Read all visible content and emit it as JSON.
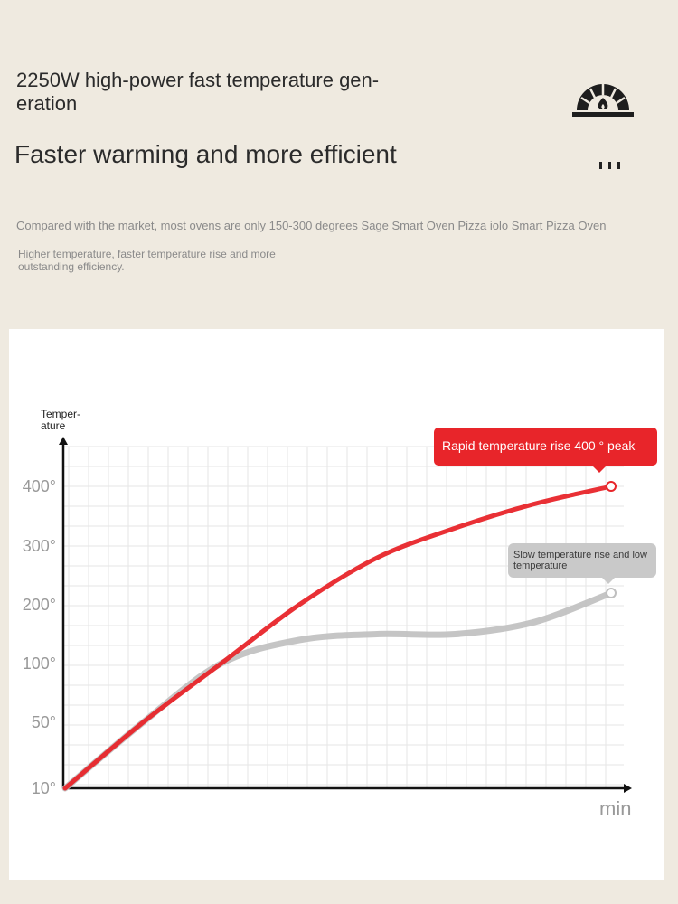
{
  "header": {
    "title": "2250W high-power fast temperature gen-eration",
    "subtitle": "Faster warming and more efficient",
    "logo_icon": "pizza-oven-flame-icon",
    "more_icon": "three-dots-icon"
  },
  "description": {
    "line1": "Compared with the market, most ovens are only 150-300 degrees Sage Smart Oven Pizza iolo Smart Pizza Oven",
    "line2": "Higher temperature, faster temperature rise and more outstanding efficiency."
  },
  "colors": {
    "background": "#efeae0",
    "red_series": "#e8252a",
    "grey_series": "#bfbfbf",
    "text_dark": "#2b2b2b",
    "text_muted": "#8a8a8a"
  },
  "chart_data": {
    "type": "line",
    "title": "",
    "xlabel": "min",
    "ylabel": "Temper-ature",
    "y_ticks": [
      "10°",
      "50°",
      "100°",
      "200°",
      "300°",
      "400°"
    ],
    "grid": true,
    "series": [
      {
        "color": "#e8252a",
        "values": [
          10,
          50,
          100,
          200,
          280,
          330,
          370,
          400
        ],
        "annotation": "Rapid temperature rise 400 ° peak"
      },
      {
        "color": "#bfbfbf",
        "values": [
          10,
          50,
          100,
          140,
          150,
          150,
          170,
          220
        ],
        "annotation": "Slow temperature rise and low temperature"
      }
    ]
  }
}
